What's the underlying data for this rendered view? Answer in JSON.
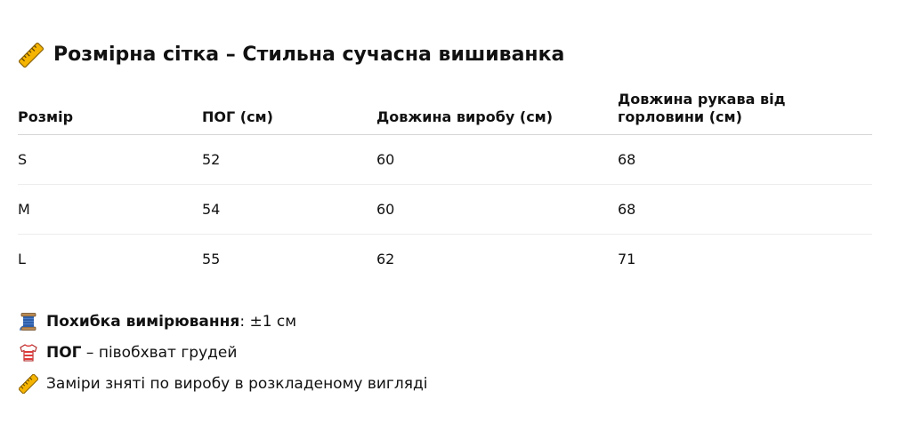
{
  "title": {
    "icon": "ruler-icon",
    "text": "Розмірна сітка – Стильна сучасна вишиванка"
  },
  "table": {
    "headers": [
      "Розмір",
      "ПОГ (см)",
      "Довжина виробу (см)",
      "Довжина рукава від горловини (см)"
    ],
    "rows": [
      [
        "S",
        "52",
        "60",
        "68"
      ],
      [
        "M",
        "54",
        "60",
        "68"
      ],
      [
        "L",
        "55",
        "62",
        "71"
      ]
    ]
  },
  "notes": [
    {
      "icon": "thread-spool-icon",
      "bold": "Похибка вимірювання",
      "text": ": ±1 см"
    },
    {
      "icon": "t-shirt-icon",
      "bold": "ПОГ",
      "text": " – півобхват грудей"
    },
    {
      "icon": "ruler-icon",
      "bold": "",
      "text": "Заміри зняті по виробу в розкладеному вигляді"
    }
  ],
  "colors": {
    "ruler": "#f5b400",
    "spool_thread": "#2f5fa8",
    "shirt": "#e03b3b"
  }
}
